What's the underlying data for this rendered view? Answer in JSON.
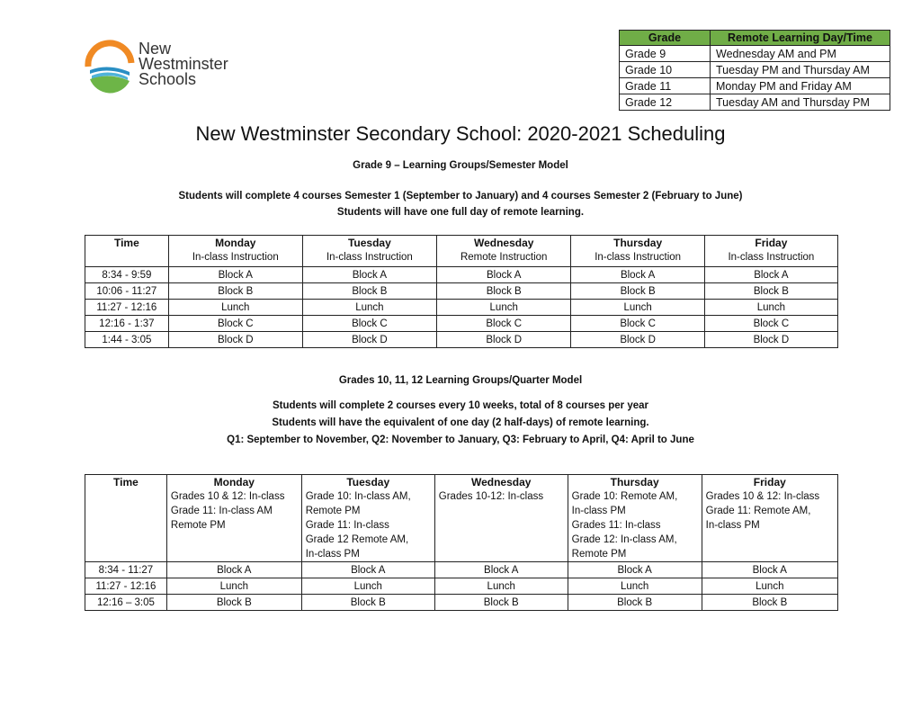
{
  "logo": {
    "line1": "New",
    "line2": "Westminster",
    "line3": "Schools"
  },
  "remote_table": {
    "headers": [
      "Grade",
      "Remote Learning Day/Time"
    ],
    "header_color": "#70ad47",
    "rows": [
      [
        "Grade 9",
        "Wednesday AM and PM"
      ],
      [
        "Grade 10",
        "Tuesday PM and Thursday AM"
      ],
      [
        "Grade 11",
        "Monday PM and Friday AM"
      ],
      [
        "Grade 12",
        "Tuesday AM and Thursday PM"
      ]
    ]
  },
  "title": "New Westminster Secondary School: 2020-2021 Scheduling",
  "section1": {
    "heading": "Grade 9 – Learning Groups/Semester Model",
    "line1": "Students will complete 4 courses Semester 1 (September to January) and 4 courses Semester 2 (February to June)",
    "line2": "Students will have one full day of remote learning.",
    "table": {
      "headers": [
        {
          "day": "Time",
          "note": ""
        },
        {
          "day": "Monday",
          "note": "In-class Instruction"
        },
        {
          "day": "Tuesday",
          "note": "In-class Instruction"
        },
        {
          "day": "Wednesday",
          "note": "Remote Instruction"
        },
        {
          "day": "Thursday",
          "note": "In-class Instruction"
        },
        {
          "day": "Friday",
          "note": "In-class Instruction"
        }
      ],
      "rows": [
        [
          "8:34 - 9:59",
          "Block A",
          "Block A",
          "Block A",
          "Block A",
          "Block A"
        ],
        [
          "10:06 - 11:27",
          "Block B",
          "Block B",
          "Block B",
          "Block B",
          "Block B"
        ],
        [
          "11:27 - 12:16",
          "Lunch",
          "Lunch",
          "Lunch",
          "Lunch",
          "Lunch"
        ],
        [
          "12:16 - 1:37",
          "Block C",
          "Block C",
          "Block C",
          "Block C",
          "Block C"
        ],
        [
          "1:44 - 3:05",
          "Block D",
          "Block D",
          "Block D",
          "Block D",
          "Block D"
        ]
      ]
    }
  },
  "section2": {
    "heading": "Grades 10, 11, 12 Learning Groups/Quarter Model",
    "line1": "Students will complete 2 courses every 10 weeks, total of 8 courses per year",
    "line2": "Students will have the equivalent of one day (2 half-days) of remote learning.",
    "line3": "Q1: September to November, Q2: November to January, Q3: February to April, Q4: April to June",
    "table": {
      "headers": [
        {
          "day": "Time",
          "notes": []
        },
        {
          "day": "Monday",
          "notes": [
            "Grades 10 & 12: In-class",
            "Grade 11: In-class AM",
            "Remote PM"
          ]
        },
        {
          "day": "Tuesday",
          "notes": [
            "Grade 10: In-class AM,",
            "Remote PM",
            "Grade 11: In-class",
            "Grade 12 Remote AM,",
            "In-class PM"
          ]
        },
        {
          "day": "Wednesday",
          "notes": [
            "Grades 10-12: In-class"
          ]
        },
        {
          "day": "Thursday",
          "notes": [
            "Grade 10: Remote AM,",
            "In-class PM",
            "Grades 11: In-class",
            "Grade 12: In-class AM,",
            "Remote PM"
          ]
        },
        {
          "day": "Friday",
          "notes": [
            "Grades 10 & 12: In-class",
            "Grade 11: Remote AM,",
            "In-class PM"
          ]
        }
      ],
      "rows": [
        [
          "8:34 - 11:27",
          "Block A",
          "Block A",
          "Block A",
          "Block A",
          "Block A"
        ],
        [
          "11:27 - 12:16",
          "Lunch",
          "Lunch",
          "Lunch",
          "Lunch",
          "Lunch"
        ],
        [
          "12:16 – 3:05",
          "Block B",
          "Block B",
          "Block B",
          "Block B",
          "Block B"
        ]
      ]
    }
  }
}
